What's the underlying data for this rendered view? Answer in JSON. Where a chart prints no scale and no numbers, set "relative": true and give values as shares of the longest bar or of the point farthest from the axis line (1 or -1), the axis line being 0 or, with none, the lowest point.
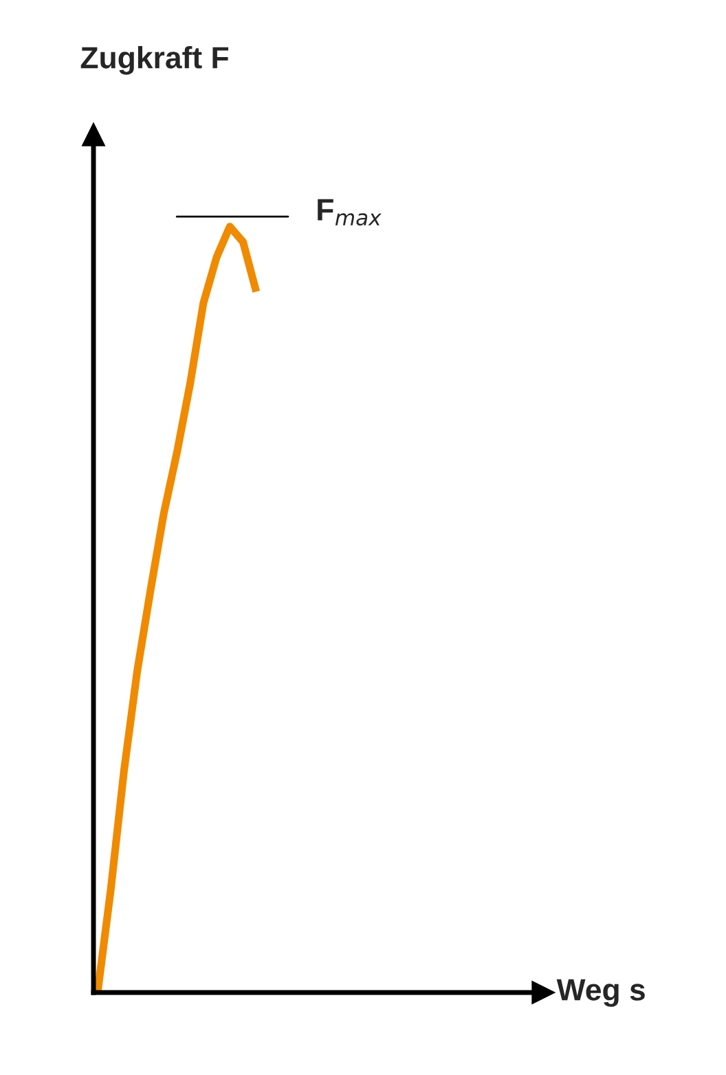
{
  "chart_data": {
    "type": "line",
    "relative": true,
    "ylabel": "Zugkraft F",
    "categories": [
      null,
      null,
      null,
      null,
      null,
      null,
      null,
      null,
      null,
      null,
      null,
      null,
      null
    ],
    "series": [
      {
        "color": "#f08a00",
        "values": [
          0,
          0.135,
          0.29,
          0.42,
          0.525,
          0.625,
          0.705,
          0.795,
          0.9,
          0.96,
          1,
          0.98,
          0.915
        ]
      }
    ],
    "annotations": [
      "F$_{max}$",
      "Weg s"
    ],
    "legend": false,
    "marker": "none",
    "line_style": "solid"
  }
}
